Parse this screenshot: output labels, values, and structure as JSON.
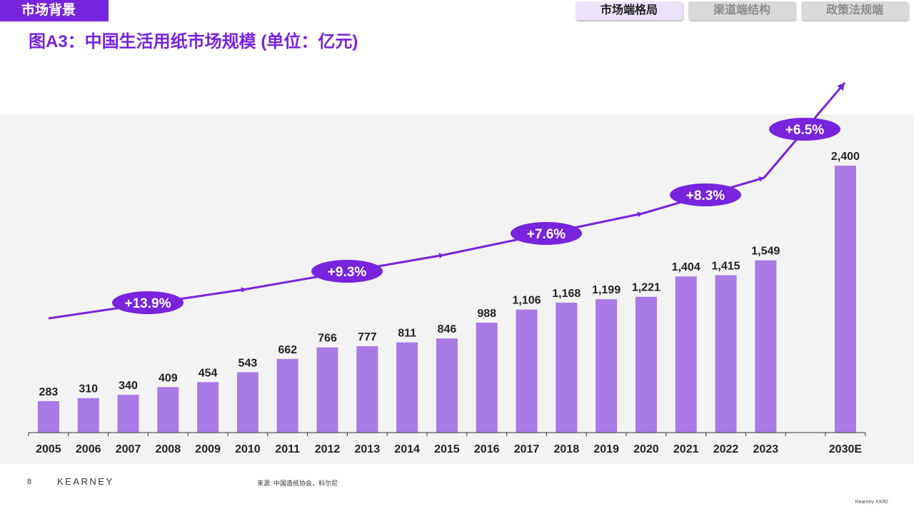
{
  "header": {
    "section_label": "市场背景",
    "tabs": [
      {
        "label": "市场端格局",
        "active": true
      },
      {
        "label": "渠道端结构",
        "active": false
      },
      {
        "label": "政策法规端",
        "active": false
      }
    ]
  },
  "title": "图A3：中国生活用纸市场规模 (单位：亿元)",
  "colors": {
    "accent": "#7823dc",
    "bar": "#a97ae6",
    "plot_bg": "#f3f3f3"
  },
  "chart_data": {
    "type": "bar",
    "categories": [
      "2005",
      "2006",
      "2007",
      "2008",
      "2009",
      "2010",
      "2011",
      "2012",
      "2013",
      "2014",
      "2015",
      "2016",
      "2017",
      "2018",
      "2019",
      "2020",
      "2021",
      "2022",
      "2023",
      "",
      "2030E"
    ],
    "values": [
      283,
      310,
      340,
      409,
      454,
      543,
      662,
      766,
      777,
      811,
      846,
      988,
      1106,
      1168,
      1199,
      1221,
      1404,
      1415,
      1549,
      null,
      2400
    ],
    "value_labels": [
      "283",
      "310",
      "340",
      "409",
      "454",
      "543",
      "662",
      "766",
      "777",
      "811",
      "846",
      "988",
      "1,106",
      "1,168",
      "1,199",
      "1,221",
      "1,404",
      "1,415",
      "1,549",
      "",
      "2,400"
    ],
    "ylim": [
      0,
      2400
    ],
    "grid": false,
    "growth_annotations": [
      {
        "label": "+13.9%",
        "period": "2005-2010"
      },
      {
        "label": "+9.3%",
        "period": "2010-2015"
      },
      {
        "label": "+7.6%",
        "period": "2015-2020"
      },
      {
        "label": "+8.3%",
        "period": "2020-2023"
      },
      {
        "label": "+6.5%",
        "period": "2023-2030E"
      }
    ]
  },
  "footer": {
    "page_number": "8",
    "brand": "KEARNEY",
    "source": "来源: 中国造纸协会，科尔尼",
    "doc_id": "Kearney XX/ID"
  }
}
